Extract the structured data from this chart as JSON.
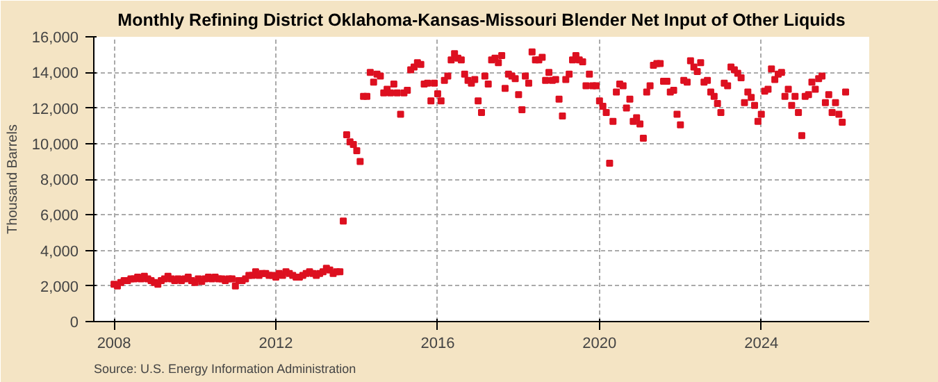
{
  "chart_data": {
    "type": "scatter",
    "title": "Monthly Refining District Oklahoma-Kansas-Missouri Blender Net Input of Other Liquids",
    "ylabel": "Thousand Barrels",
    "annotations": [
      "Source: U.S. Energy Information Administration"
    ],
    "marker": "square",
    "grid": true,
    "xlim": [
      "2007-07",
      "2026-09"
    ],
    "xticks": [
      "2008",
      "2012",
      "2016",
      "2020",
      "2024"
    ],
    "ylim": [
      0,
      16000
    ],
    "yticks": [
      {
        "value": 0,
        "label": "0"
      },
      {
        "value": 2000,
        "label": "2,000"
      },
      {
        "value": 4000,
        "label": "4,000"
      },
      {
        "value": 6000,
        "label": "6,000"
      },
      {
        "value": 8000,
        "label": "8,000"
      },
      {
        "value": 10000,
        "label": "10,000"
      },
      {
        "value": 12000,
        "label": "12,000"
      },
      {
        "value": 14000,
        "label": "14,000"
      },
      {
        "value": 16000,
        "label": "16,000"
      }
    ],
    "x": [
      "2008-01",
      "2008-02",
      "2008-03",
      "2008-04",
      "2008-05",
      "2008-06",
      "2008-07",
      "2008-08",
      "2008-09",
      "2008-10",
      "2008-11",
      "2008-12",
      "2009-01",
      "2009-02",
      "2009-03",
      "2009-04",
      "2009-05",
      "2009-06",
      "2009-07",
      "2009-08",
      "2009-09",
      "2009-10",
      "2009-11",
      "2009-12",
      "2010-01",
      "2010-02",
      "2010-03",
      "2010-04",
      "2010-05",
      "2010-06",
      "2010-07",
      "2010-08",
      "2010-09",
      "2010-10",
      "2010-11",
      "2010-12",
      "2011-01",
      "2011-02",
      "2011-03",
      "2011-04",
      "2011-05",
      "2011-06",
      "2011-07",
      "2011-08",
      "2011-09",
      "2011-10",
      "2011-11",
      "2011-12",
      "2012-01",
      "2012-02",
      "2012-03",
      "2012-04",
      "2012-05",
      "2012-06",
      "2012-07",
      "2012-08",
      "2012-09",
      "2012-10",
      "2012-11",
      "2012-12",
      "2013-01",
      "2013-02",
      "2013-03",
      "2013-04",
      "2013-05",
      "2013-06",
      "2013-07",
      "2013-08",
      "2013-09",
      "2013-10",
      "2013-11",
      "2013-12",
      "2014-01",
      "2014-02",
      "2014-03",
      "2014-04",
      "2014-05",
      "2014-06",
      "2014-07",
      "2014-08",
      "2014-09",
      "2014-10",
      "2014-11",
      "2014-12",
      "2015-01",
      "2015-02",
      "2015-03",
      "2015-04",
      "2015-05",
      "2015-06",
      "2015-07",
      "2015-08",
      "2015-09",
      "2015-10",
      "2015-11",
      "2015-12",
      "2016-01",
      "2016-02",
      "2016-03",
      "2016-04",
      "2016-05",
      "2016-06",
      "2016-07",
      "2016-08",
      "2016-09",
      "2016-10",
      "2016-11",
      "2016-12",
      "2017-01",
      "2017-02",
      "2017-03",
      "2017-04",
      "2017-05",
      "2017-06",
      "2017-07",
      "2017-08",
      "2017-09",
      "2017-10",
      "2017-11",
      "2017-12",
      "2018-01",
      "2018-02",
      "2018-03",
      "2018-04",
      "2018-05",
      "2018-06",
      "2018-07",
      "2018-08",
      "2018-09",
      "2018-10",
      "2018-11",
      "2018-12",
      "2019-01",
      "2019-02",
      "2019-03",
      "2019-04",
      "2019-05",
      "2019-06",
      "2019-07",
      "2019-08",
      "2019-09",
      "2019-10",
      "2019-11",
      "2019-12",
      "2020-01",
      "2020-02",
      "2020-03",
      "2020-04",
      "2020-05",
      "2020-06",
      "2020-07",
      "2020-08",
      "2020-09",
      "2020-10",
      "2020-11",
      "2020-12",
      "2021-01",
      "2021-02",
      "2021-03",
      "2021-04",
      "2021-05",
      "2021-06",
      "2021-07",
      "2021-08",
      "2021-09",
      "2021-10",
      "2021-11",
      "2021-12",
      "2022-01",
      "2022-02",
      "2022-03",
      "2022-04",
      "2022-05",
      "2022-06",
      "2022-07",
      "2022-08",
      "2022-09",
      "2022-10",
      "2022-11",
      "2022-12",
      "2023-01",
      "2023-02",
      "2023-03",
      "2023-04",
      "2023-05",
      "2023-06",
      "2023-07",
      "2023-08",
      "2023-09",
      "2023-10",
      "2023-11",
      "2023-12",
      "2024-01",
      "2024-02",
      "2024-03",
      "2024-04",
      "2024-05",
      "2024-06",
      "2024-07",
      "2024-08",
      "2024-09",
      "2024-10",
      "2024-11",
      "2024-12",
      "2025-01",
      "2025-02",
      "2025-03",
      "2025-04",
      "2025-05",
      "2025-06",
      "2025-07",
      "2025-08",
      "2025-09",
      "2025-10",
      "2025-11",
      "2025-12",
      "2026-01",
      "2026-02"
    ],
    "series": [
      {
        "color": "#dd1020",
        "values": [
          2100,
          2000,
          2200,
          2300,
          2300,
          2400,
          2400,
          2500,
          2400,
          2550,
          2400,
          2300,
          2200,
          2100,
          2300,
          2400,
          2550,
          2400,
          2300,
          2400,
          2300,
          2400,
          2500,
          2300,
          2200,
          2400,
          2250,
          2400,
          2500,
          2400,
          2500,
          2400,
          2400,
          2300,
          2400,
          2400,
          2000,
          2300,
          2300,
          2400,
          2600,
          2600,
          2800,
          2600,
          2700,
          2700,
          2600,
          2600,
          2500,
          2700,
          2600,
          2800,
          2700,
          2600,
          2500,
          2500,
          2600,
          2700,
          2800,
          2700,
          2600,
          2700,
          2800,
          3000,
          2900,
          2700,
          2800,
          2800,
          5650,
          10500,
          10100,
          9950,
          9600,
          9000,
          12650,
          12650,
          14000,
          13450,
          13900,
          13800,
          12850,
          13050,
          12850,
          13350,
          12850,
          11650,
          12850,
          13000,
          14150,
          14300,
          14550,
          14450,
          13350,
          13400,
          12400,
          13400,
          12800,
          12400,
          13550,
          13800,
          14700,
          15050,
          14800,
          14700,
          13900,
          13550,
          13400,
          13600,
          12400,
          11750,
          13800,
          13350,
          14700,
          14800,
          14550,
          14950,
          13100,
          13900,
          13800,
          13650,
          12750,
          11900,
          13800,
          13400,
          15150,
          14700,
          14700,
          14850,
          13550,
          14000,
          13550,
          13600,
          12500,
          11550,
          13600,
          13900,
          14700,
          14950,
          14700,
          14600,
          13250,
          13900,
          13250,
          13250,
          12400,
          12100,
          11750,
          8900,
          11250,
          12900,
          13350,
          13250,
          12000,
          12500,
          11250,
          11450,
          11100,
          10300,
          12900,
          13250,
          14400,
          14500,
          14500,
          13500,
          13500,
          12900,
          13000,
          11650,
          11050,
          13550,
          13450,
          14650,
          14300,
          14050,
          14550,
          13450,
          13550,
          12900,
          12650,
          12250,
          11750,
          13400,
          13250,
          14300,
          14150,
          13950,
          13700,
          12300,
          12900,
          12600,
          12150,
          11250,
          11650,
          12950,
          13050,
          14200,
          13600,
          13900,
          14000,
          12650,
          13050,
          12150,
          12650,
          11750,
          10450,
          12650,
          12750,
          13450,
          13050,
          13650,
          13800,
          12300,
          12750,
          11750,
          12300,
          11650,
          11200,
          12900
        ]
      }
    ]
  }
}
